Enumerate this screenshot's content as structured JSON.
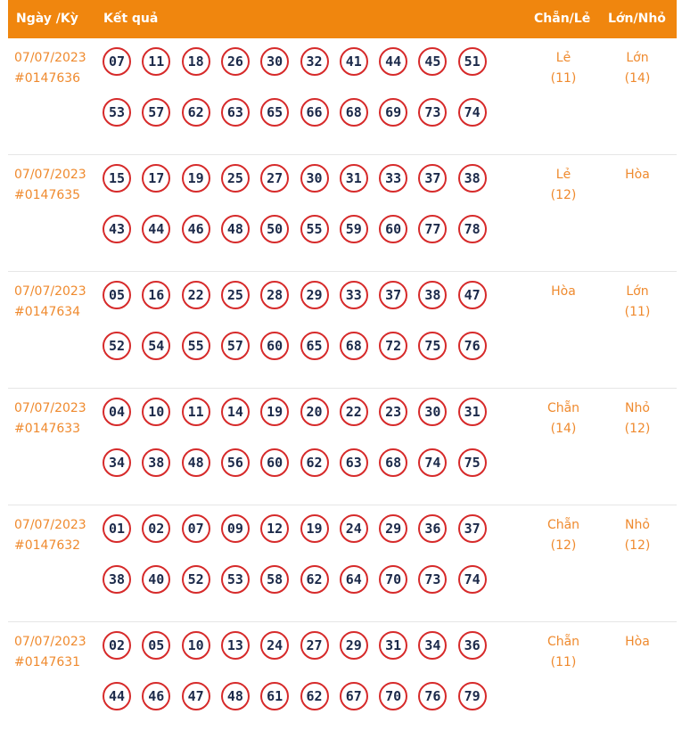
{
  "header": {
    "date_col": "Ngày /Kỳ",
    "result_col": "Kết quả",
    "parity_col": "Chẵn/Lẻ",
    "size_col": "Lớn/Nhỏ"
  },
  "colors": {
    "header_bg": "#f0860e",
    "accent_text": "#ef8a2e",
    "ball_border": "#d62a2a",
    "ball_text": "#1c2a4a"
  },
  "draws": [
    {
      "date": "07/07/2023",
      "id": "#0147636",
      "numbers": [
        "07",
        "11",
        "18",
        "26",
        "30",
        "32",
        "41",
        "44",
        "45",
        "51",
        "53",
        "57",
        "62",
        "63",
        "65",
        "66",
        "68",
        "69",
        "73",
        "74"
      ],
      "parity": "Lẻ",
      "parity_count": "(11)",
      "size": "Lớn",
      "size_count": "(14)"
    },
    {
      "date": "07/07/2023",
      "id": "#0147635",
      "numbers": [
        "15",
        "17",
        "19",
        "25",
        "27",
        "30",
        "31",
        "33",
        "37",
        "38",
        "43",
        "44",
        "46",
        "48",
        "50",
        "55",
        "59",
        "60",
        "77",
        "78"
      ],
      "parity": "Lẻ",
      "parity_count": "(12)",
      "size": "Hòa",
      "size_count": ""
    },
    {
      "date": "07/07/2023",
      "id": "#0147634",
      "numbers": [
        "05",
        "16",
        "22",
        "25",
        "28",
        "29",
        "33",
        "37",
        "38",
        "47",
        "52",
        "54",
        "55",
        "57",
        "60",
        "65",
        "68",
        "72",
        "75",
        "76"
      ],
      "parity": "Hòa",
      "parity_count": "",
      "size": "Lớn",
      "size_count": "(11)"
    },
    {
      "date": "07/07/2023",
      "id": "#0147633",
      "numbers": [
        "04",
        "10",
        "11",
        "14",
        "19",
        "20",
        "22",
        "23",
        "30",
        "31",
        "34",
        "38",
        "48",
        "56",
        "60",
        "62",
        "63",
        "68",
        "74",
        "75"
      ],
      "parity": "Chẵn",
      "parity_count": "(14)",
      "size": "Nhỏ",
      "size_count": "(12)"
    },
    {
      "date": "07/07/2023",
      "id": "#0147632",
      "numbers": [
        "01",
        "02",
        "07",
        "09",
        "12",
        "19",
        "24",
        "29",
        "36",
        "37",
        "38",
        "40",
        "52",
        "53",
        "58",
        "62",
        "64",
        "70",
        "73",
        "74"
      ],
      "parity": "Chẵn",
      "parity_count": "(12)",
      "size": "Nhỏ",
      "size_count": "(12)"
    },
    {
      "date": "07/07/2023",
      "id": "#0147631",
      "numbers": [
        "02",
        "05",
        "10",
        "13",
        "24",
        "27",
        "29",
        "31",
        "34",
        "36",
        "44",
        "46",
        "47",
        "48",
        "61",
        "62",
        "67",
        "70",
        "76",
        "79"
      ],
      "parity": "Chẵn",
      "parity_count": "(11)",
      "size": "Hòa",
      "size_count": ""
    }
  ]
}
